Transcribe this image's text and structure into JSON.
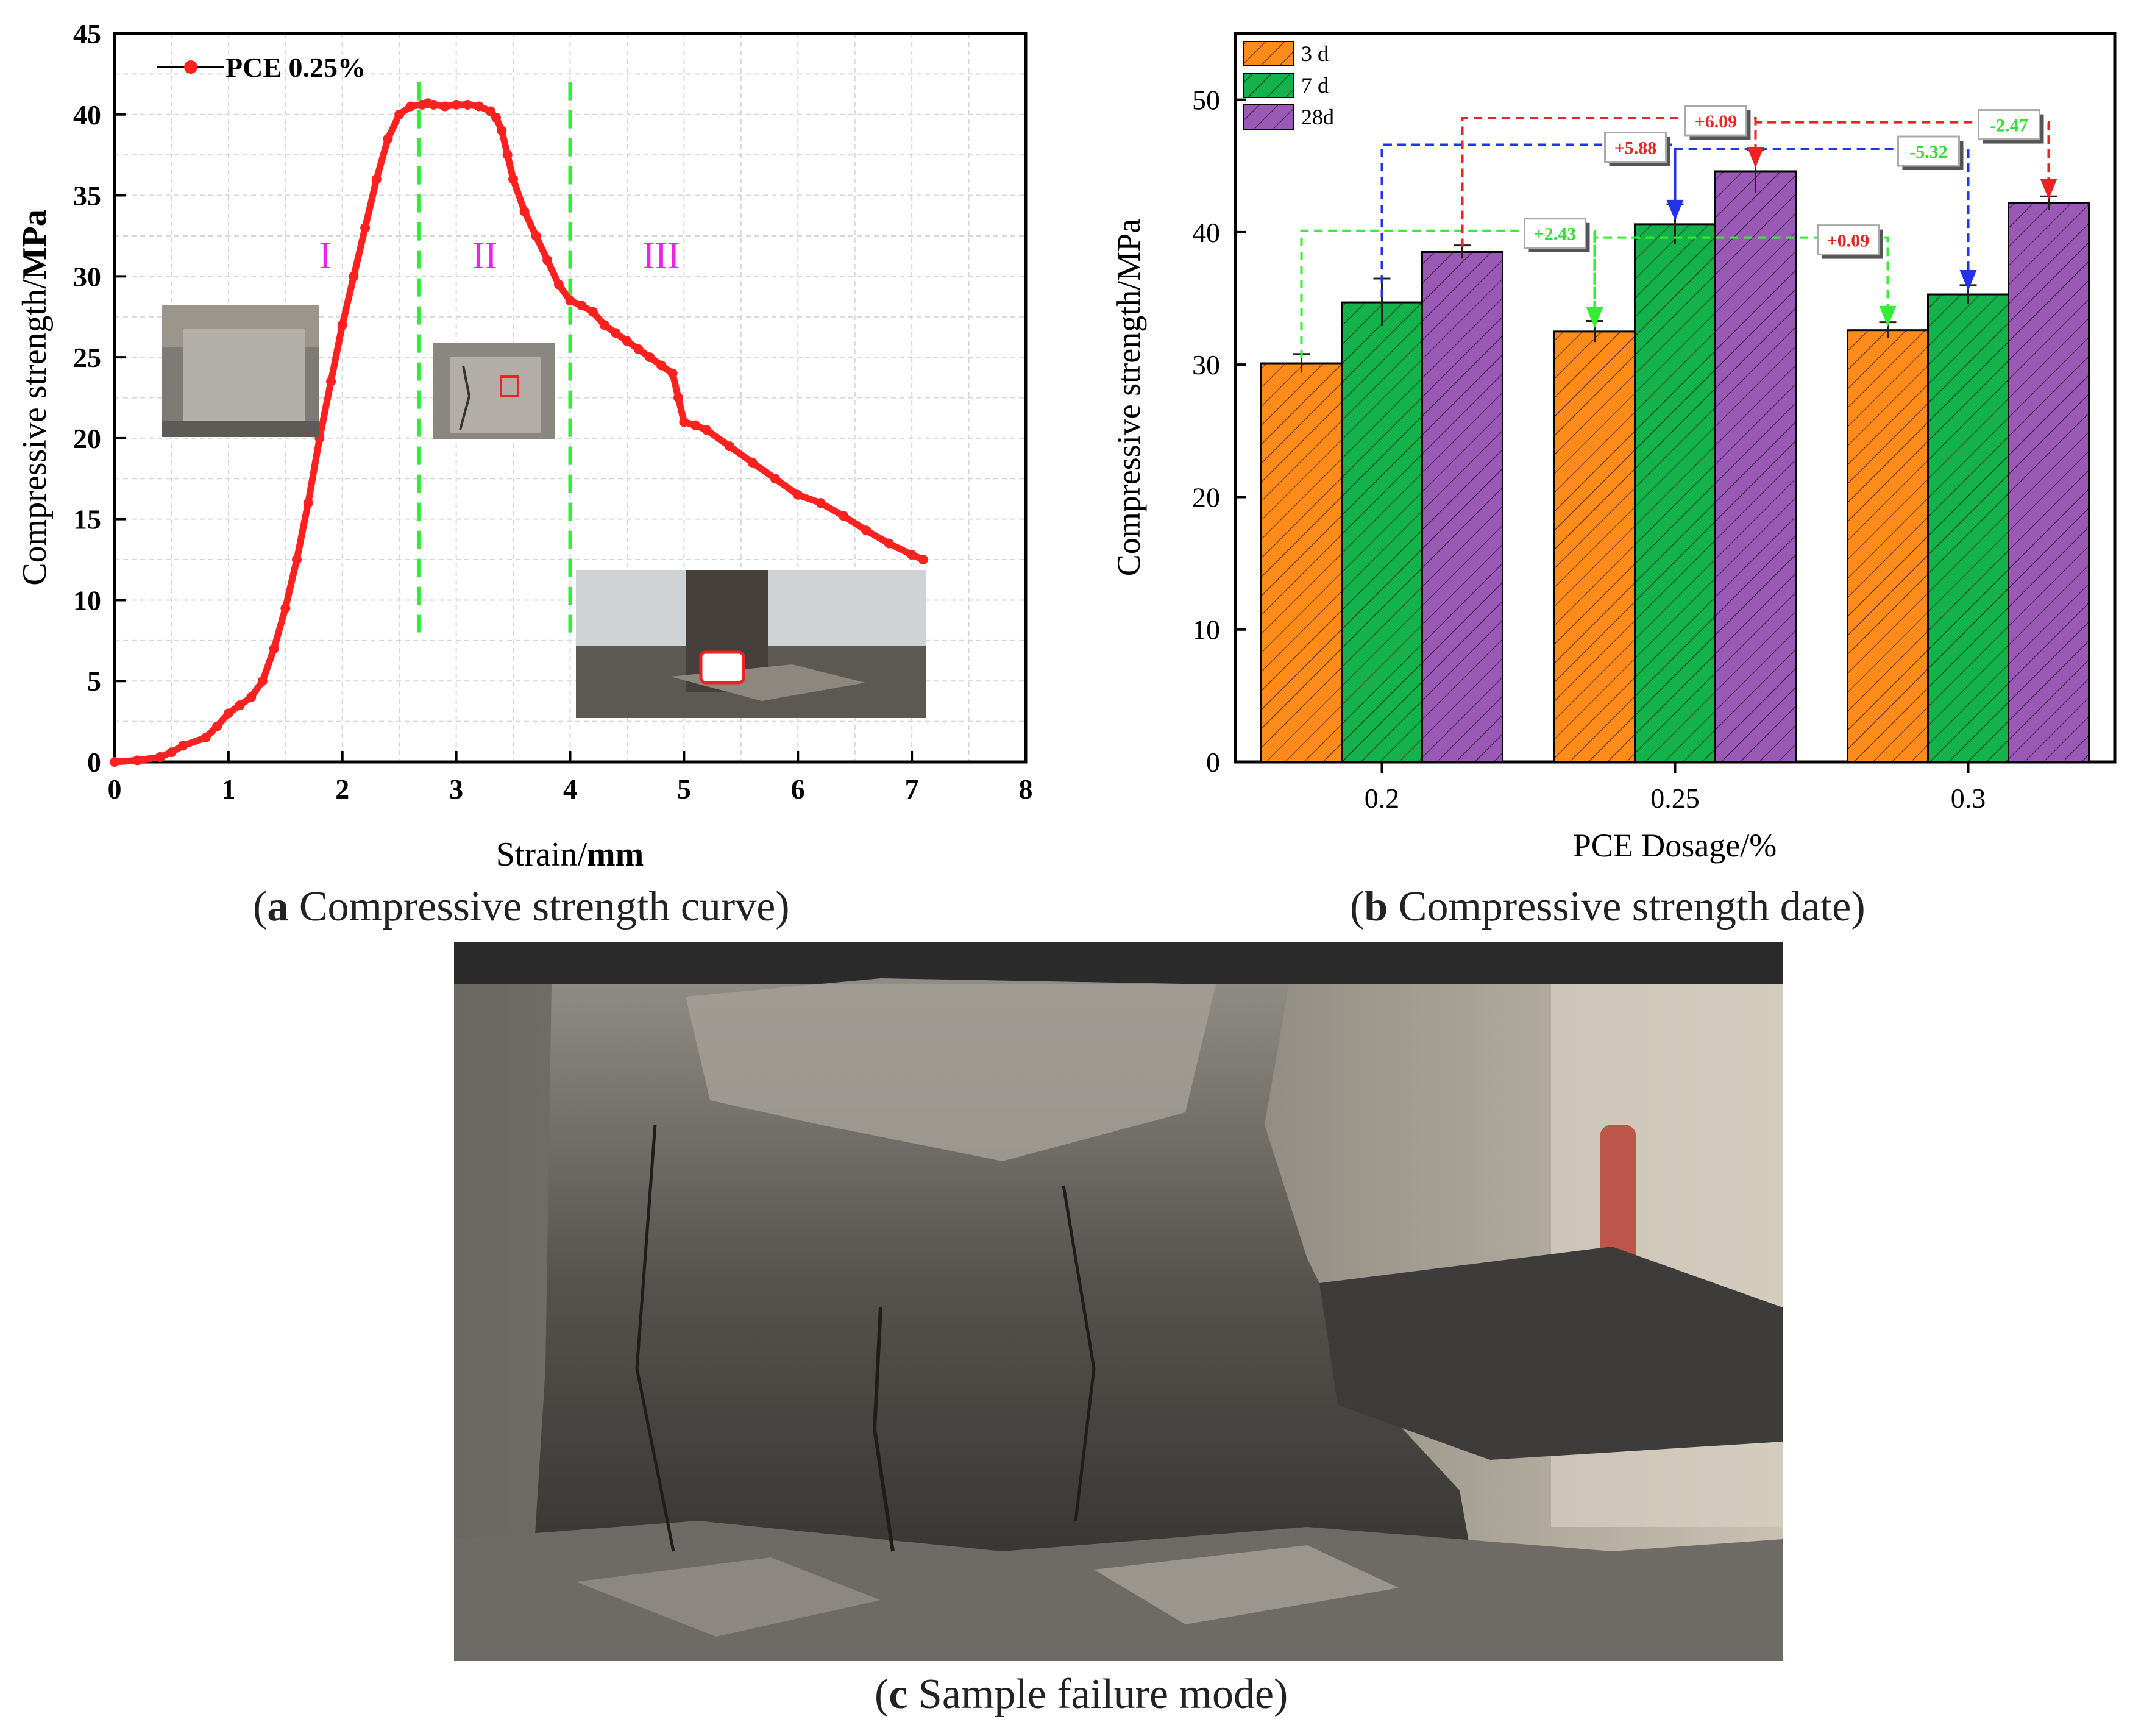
{
  "captions": {
    "a_letter": "a",
    "a_text": " Compressive strength curve",
    "b_letter": "b",
    "b_text": " Compressive strength date",
    "c_letter": "c",
    "c_text": " Sample failure mode"
  },
  "chart_data": [
    {
      "type": "line",
      "title": "",
      "xlabel_plain": "Strain/",
      "xlabel_bold": "mm",
      "ylabel_plain": "Compressive strength/",
      "ylabel_bold": "MPa",
      "xlim": [
        0,
        8
      ],
      "ylim": [
        0,
        45
      ],
      "xticks": [
        0,
        1,
        2,
        3,
        4,
        5,
        6,
        7,
        8
      ],
      "yticks": [
        0,
        5,
        10,
        15,
        20,
        25,
        30,
        35,
        40,
        45
      ],
      "grid": true,
      "legend": {
        "placement": "top-left",
        "entries": [
          "PCE 0.25%"
        ]
      },
      "series": [
        {
          "name": "PCE 0.25%",
          "color": "#ff2020",
          "x": [
            0,
            0.2,
            0.4,
            0.5,
            0.6,
            0.8,
            0.9,
            1.0,
            1.1,
            1.2,
            1.3,
            1.4,
            1.5,
            1.6,
            1.7,
            1.8,
            1.9,
            2.0,
            2.1,
            2.2,
            2.3,
            2.4,
            2.5,
            2.6,
            2.7,
            2.75,
            2.8,
            2.9,
            3.0,
            3.1,
            3.2,
            3.3,
            3.35,
            3.4,
            3.45,
            3.5,
            3.6,
            3.7,
            3.8,
            3.9,
            4.0,
            4.1,
            4.2,
            4.3,
            4.4,
            4.5,
            4.6,
            4.7,
            4.8,
            4.9,
            4.95,
            5.0,
            5.1,
            5.2,
            5.4,
            5.6,
            5.8,
            6.0,
            6.2,
            6.4,
            6.6,
            6.8,
            7.0,
            7.1
          ],
          "y": [
            0,
            0.1,
            0.3,
            0.6,
            1.0,
            1.5,
            2.2,
            3.0,
            3.5,
            4.0,
            5.0,
            7.0,
            9.5,
            12.5,
            16.0,
            20.0,
            23.5,
            27.0,
            30.0,
            33.0,
            36.0,
            38.5,
            40.0,
            40.5,
            40.6,
            40.7,
            40.6,
            40.5,
            40.6,
            40.6,
            40.5,
            40.2,
            39.8,
            39.0,
            37.5,
            36.0,
            34.0,
            32.5,
            31.0,
            29.5,
            28.5,
            28.2,
            27.8,
            27.0,
            26.5,
            26.0,
            25.5,
            25.0,
            24.5,
            24.0,
            22.5,
            21.0,
            20.8,
            20.5,
            19.5,
            18.5,
            17.5,
            16.5,
            16.0,
            15.2,
            14.3,
            13.5,
            12.8,
            12.5
          ]
        }
      ],
      "dividers_x": [
        2.67,
        4.0
      ],
      "divider_color": "#33ee33",
      "region_labels": [
        {
          "text": "I",
          "x": 1.85,
          "y": 30.5
        },
        {
          "text": "II",
          "x": 3.25,
          "y": 30.5
        },
        {
          "text": "III",
          "x": 4.8,
          "y": 30.5
        }
      ],
      "region_label_color": "#ee22ee"
    },
    {
      "type": "bar",
      "title": "",
      "xlabel": "PCE Dosage/%",
      "ylabel": "Compressive strength/MPa",
      "ylim": [
        0,
        55
      ],
      "yticks": [
        0,
        10,
        20,
        30,
        40,
        50
      ],
      "categories": [
        "0.2",
        "0.25",
        "0.3"
      ],
      "legend": {
        "placement": "top-left"
      },
      "series": [
        {
          "name": "3 d",
          "color": "#ff8c1a",
          "values": [
            30.1,
            32.5,
            32.6
          ],
          "errors": [
            0.7,
            0.8,
            0.6
          ]
        },
        {
          "name": "7 d",
          "color": "#13b24a",
          "values": [
            34.7,
            40.6,
            35.3
          ],
          "errors": [
            1.8,
            1.5,
            0.7
          ]
        },
        {
          "name": "28d",
          "color": "#9b59b6",
          "values": [
            38.5,
            44.6,
            42.2
          ],
          "errors": [
            0.5,
            1.6,
            0.5
          ]
        }
      ],
      "annotations": [
        {
          "label": "+2.43",
          "color": "#33ee33",
          "text_color": "#33dd33",
          "from": [
            0,
            0
          ],
          "to": [
            1,
            0
          ],
          "line_y": 40.1
        },
        {
          "label": "+0.09",
          "color": "#33ee33",
          "text_color": "#ee2222",
          "from": [
            1,
            0
          ],
          "to": [
            2,
            0
          ],
          "line_y": 39.6
        },
        {
          "label": "+5.88",
          "color": "#2233ee",
          "text_color": "#ee2222",
          "from": [
            0,
            1
          ],
          "to": [
            1,
            1
          ],
          "line_y": 46.6
        },
        {
          "label": "-5.32",
          "color": "#2233ee",
          "text_color": "#33dd33",
          "from": [
            1,
            1
          ],
          "to": [
            2,
            1
          ],
          "line_y": 46.3
        },
        {
          "label": "+6.09",
          "color": "#ee2222",
          "text_color": "#ee2222",
          "from": [
            0,
            2
          ],
          "to": [
            1,
            2
          ],
          "line_y": 48.6
        },
        {
          "label": "-2.47",
          "color": "#ee2222",
          "text_color": "#33dd33",
          "from": [
            1,
            2
          ],
          "to": [
            2,
            2
          ],
          "line_y": 48.3
        }
      ]
    }
  ]
}
